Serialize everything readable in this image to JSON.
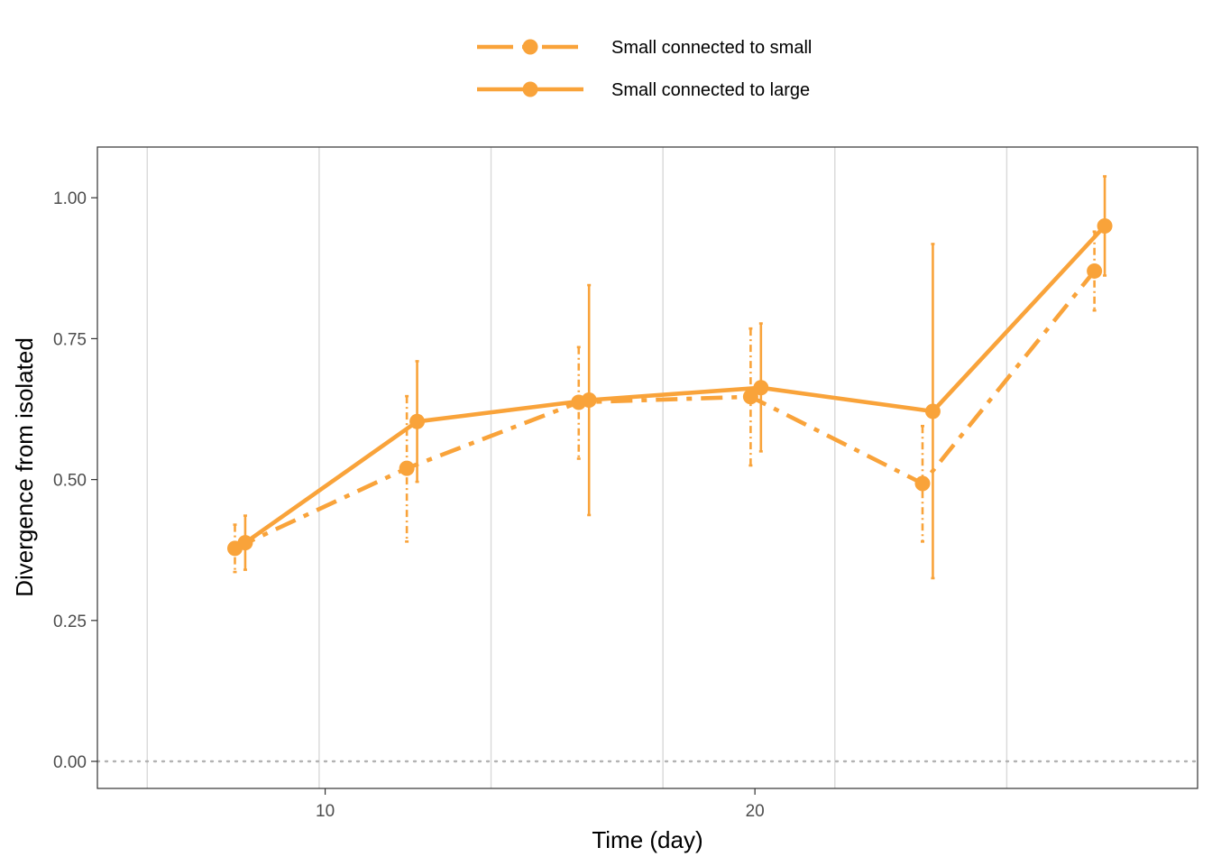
{
  "chart_data": {
    "type": "line",
    "xlabel": "Time (day)",
    "ylabel": "Divergence from isolated",
    "xlim": [
      4.7,
      30.3
    ],
    "ylim": [
      -0.048,
      1.09
    ],
    "x_ticks": [
      10,
      20
    ],
    "y_ticks": [
      0,
      0.25,
      0.5,
      0.75,
      1.0
    ],
    "y_tick_labels": [
      "0.00",
      "0.25",
      "0.50",
      "0.75",
      "1.00"
    ],
    "vertical_gridlines": [
      5.86,
      9.86,
      13.86,
      17.86,
      21.86,
      25.86
    ],
    "reference_line_y": 0,
    "grid": true,
    "legend_position": "top",
    "color": "#F9A33A",
    "series": [
      {
        "name": "Small connected to small",
        "linestyle": "dashdot",
        "points": [
          {
            "x": 7.9,
            "y": 0.378,
            "lower": 0.336,
            "upper": 0.42
          },
          {
            "x": 11.9,
            "y": 0.52,
            "lower": 0.39,
            "upper": 0.648
          },
          {
            "x": 15.9,
            "y": 0.637,
            "lower": 0.537,
            "upper": 0.735
          },
          {
            "x": 19.9,
            "y": 0.647,
            "lower": 0.525,
            "upper": 0.768
          },
          {
            "x": 23.9,
            "y": 0.493,
            "lower": 0.39,
            "upper": 0.595
          },
          {
            "x": 27.9,
            "y": 0.87,
            "lower": 0.8,
            "upper": 0.94
          }
        ]
      },
      {
        "name": "Small connected to large",
        "linestyle": "solid",
        "points": [
          {
            "x": 8.14,
            "y": 0.388,
            "lower": 0.34,
            "upper": 0.436
          },
          {
            "x": 12.14,
            "y": 0.603,
            "lower": 0.496,
            "upper": 0.71
          },
          {
            "x": 16.14,
            "y": 0.641,
            "lower": 0.437,
            "upper": 0.845
          },
          {
            "x": 20.14,
            "y": 0.663,
            "lower": 0.55,
            "upper": 0.777
          },
          {
            "x": 24.14,
            "y": 0.621,
            "lower": 0.325,
            "upper": 0.918
          },
          {
            "x": 28.14,
            "y": 0.95,
            "lower": 0.862,
            "upper": 1.038
          }
        ]
      }
    ]
  }
}
